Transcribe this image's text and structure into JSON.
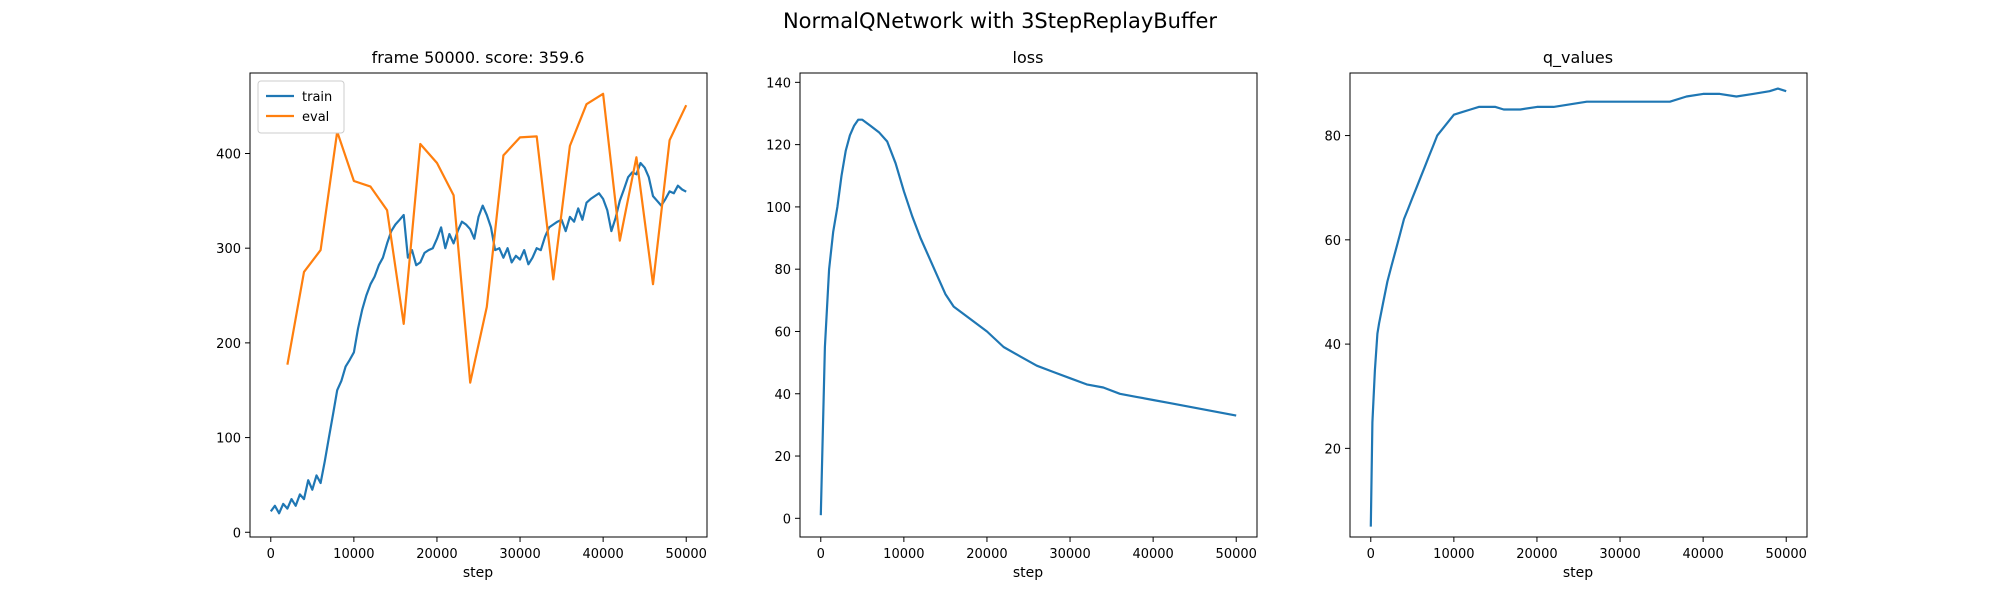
{
  "figure_title": "NormalQNetwork with 3StepReplayBuffer",
  "colors": {
    "train": "#1f77b4",
    "eval": "#ff7f0e"
  },
  "chart_data": [
    {
      "type": "line",
      "title": "frame 50000. score: 359.6",
      "xlabel": "step",
      "ylabel": "",
      "xlim": [
        -2500,
        52500
      ],
      "ylim": [
        -5,
        485
      ],
      "xticks": [
        0,
        10000,
        20000,
        30000,
        40000,
        50000
      ],
      "yticks": [
        0,
        100,
        200,
        300,
        400
      ],
      "grid": false,
      "legend": "top-left",
      "series": [
        {
          "name": "train",
          "color": "#1f77b4",
          "x": [
            0,
            500,
            1000,
            1500,
            2000,
            2500,
            3000,
            3500,
            4000,
            4500,
            5000,
            5500,
            6000,
            6500,
            7000,
            7500,
            8000,
            8500,
            9000,
            9500,
            10000,
            10500,
            11000,
            11500,
            12000,
            12500,
            13000,
            13500,
            14000,
            14500,
            15000,
            15500,
            16000,
            16500,
            17000,
            17500,
            18000,
            18500,
            19000,
            19500,
            20000,
            20500,
            21000,
            21500,
            22000,
            22500,
            23000,
            23500,
            24000,
            24500,
            25000,
            25500,
            26000,
            26500,
            27000,
            27500,
            28000,
            28500,
            29000,
            29500,
            30000,
            30500,
            31000,
            31500,
            32000,
            32500,
            33000,
            33500,
            34000,
            34500,
            35000,
            35500,
            36000,
            36500,
            37000,
            37500,
            38000,
            38500,
            39000,
            39500,
            40000,
            40500,
            41000,
            41500,
            42000,
            42500,
            43000,
            43500,
            44000,
            44500,
            45000,
            45500,
            46000,
            46500,
            47000,
            47500,
            48000,
            48500,
            49000,
            49500,
            50000
          ],
          "y": [
            22,
            28,
            20,
            30,
            25,
            35,
            28,
            40,
            35,
            55,
            45,
            60,
            52,
            75,
            100,
            125,
            150,
            160,
            175,
            182,
            190,
            215,
            235,
            250,
            262,
            270,
            282,
            290,
            305,
            318,
            325,
            330,
            335,
            290,
            298,
            282,
            285,
            295,
            298,
            300,
            310,
            322,
            300,
            315,
            305,
            318,
            328,
            325,
            320,
            310,
            333,
            345,
            335,
            322,
            298,
            300,
            290,
            300,
            285,
            292,
            288,
            298,
            283,
            290,
            300,
            298,
            312,
            322,
            325,
            328,
            330,
            318,
            333,
            328,
            342,
            330,
            348,
            352,
            355,
            358,
            352,
            340,
            318,
            332,
            350,
            362,
            375,
            380,
            378,
            390,
            385,
            375,
            355,
            350,
            345,
            352,
            360,
            358,
            366,
            362,
            359.6
          ]
        },
        {
          "name": "eval",
          "color": "#ff7f0e",
          "x": [
            2000,
            4000,
            6000,
            8000,
            10000,
            12000,
            14000,
            16000,
            18000,
            20000,
            22000,
            24000,
            26000,
            28000,
            30000,
            32000,
            34000,
            36000,
            38000,
            40000,
            42000,
            44000,
            46000,
            48000,
            50000
          ],
          "y": [
            177,
            275,
            298,
            423,
            371,
            365,
            340,
            220,
            410,
            390,
            356,
            158,
            238,
            398,
            417,
            418,
            267,
            408,
            452,
            463,
            308,
            396,
            262,
            414,
            451
          ]
        }
      ]
    },
    {
      "type": "line",
      "title": "loss",
      "xlabel": "step",
      "ylabel": "",
      "xlim": [
        -2500,
        52500
      ],
      "ylim": [
        -6,
        143
      ],
      "xticks": [
        0,
        10000,
        20000,
        30000,
        40000,
        50000
      ],
      "yticks": [
        0,
        20,
        40,
        60,
        80,
        100,
        120,
        140
      ],
      "grid": false,
      "series": [
        {
          "name": "",
          "color": "#1f77b4",
          "x": [
            0,
            500,
            1000,
            1500,
            2000,
            2500,
            3000,
            3500,
            4000,
            4500,
            5000,
            6000,
            7000,
            8000,
            9000,
            10000,
            11000,
            12000,
            13000,
            14000,
            15000,
            16000,
            18000,
            20000,
            22000,
            24000,
            26000,
            28000,
            30000,
            32000,
            34000,
            36000,
            38000,
            40000,
            42000,
            44000,
            46000,
            48000,
            50000
          ],
          "y": [
            1,
            55,
            80,
            92,
            100,
            110,
            118,
            123,
            126,
            128,
            128,
            126,
            124,
            121,
            114,
            105,
            97,
            90,
            84,
            78,
            72,
            68,
            64,
            60,
            55,
            52,
            49,
            47,
            45,
            43,
            42,
            40,
            39,
            38,
            37,
            36,
            35,
            34,
            33
          ]
        }
      ]
    },
    {
      "type": "line",
      "title": "q_values",
      "xlabel": "step",
      "ylabel": "",
      "xlim": [
        -2500,
        52500
      ],
      "ylim": [
        3,
        92
      ],
      "xticks": [
        0,
        10000,
        20000,
        30000,
        40000,
        50000
      ],
      "yticks": [
        20,
        40,
        60,
        80
      ],
      "grid": false,
      "series": [
        {
          "name": "",
          "color": "#1f77b4",
          "x": [
            0,
            200,
            500,
            800,
            1000,
            1500,
            2000,
            2500,
            3000,
            3500,
            4000,
            4500,
            5000,
            5500,
            6000,
            6500,
            7000,
            7500,
            8000,
            8500,
            9000,
            9500,
            10000,
            11000,
            12000,
            13000,
            14000,
            15000,
            16000,
            18000,
            20000,
            22000,
            24000,
            26000,
            28000,
            30000,
            32000,
            34000,
            36000,
            38000,
            40000,
            42000,
            44000,
            46000,
            48000,
            49000,
            50000
          ],
          "y": [
            5,
            25,
            35,
            42,
            44,
            48,
            52,
            55,
            58,
            61,
            64,
            66,
            68,
            70,
            72,
            74,
            76,
            78,
            80,
            81,
            82,
            83,
            84,
            84.5,
            85,
            85.5,
            85.5,
            85.5,
            85,
            85,
            85.5,
            85.5,
            86,
            86.5,
            86.5,
            86.5,
            86.5,
            86.5,
            86.5,
            87.5,
            88,
            88,
            87.5,
            88,
            88.5,
            89,
            88.5
          ]
        }
      ]
    }
  ]
}
